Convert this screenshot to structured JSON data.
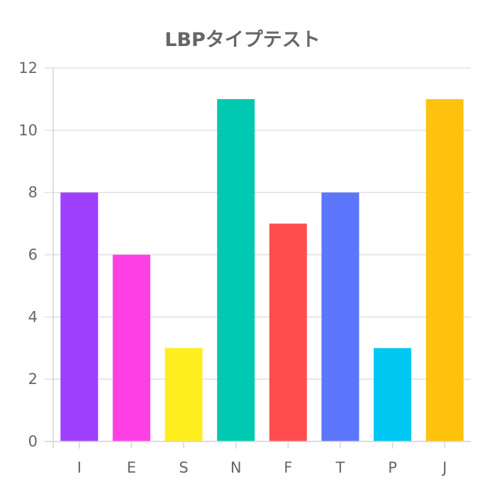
{
  "chart_data": {
    "type": "bar",
    "title": "LBPタイプテスト",
    "xlabel": "",
    "ylabel": "",
    "categories": [
      "I",
      "E",
      "S",
      "N",
      "F",
      "T",
      "P",
      "J"
    ],
    "values": [
      8,
      6,
      3,
      11,
      7,
      8,
      3,
      11
    ],
    "colors": [
      "#a040ff",
      "#ff40e6",
      "#ffee1f",
      "#00c9b1",
      "#ff4d4d",
      "#5b76fb",
      "#00c8f2",
      "#ffc30f"
    ],
    "ylim": [
      0,
      12
    ],
    "yticks": [
      0,
      2,
      4,
      6,
      8,
      10,
      12
    ],
    "grid": true,
    "legend": "none"
  }
}
